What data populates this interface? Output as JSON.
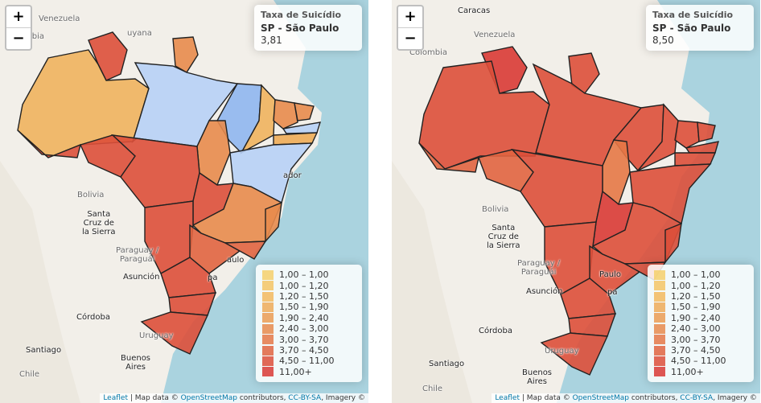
{
  "panels": [
    {
      "info": {
        "title": "Taxa de Suicídio",
        "state": "SP - São Paulo",
        "value": "3,81"
      }
    },
    {
      "info": {
        "title": "Taxa de Suicídio",
        "state": "SP - São Paulo",
        "value": "8,50"
      }
    }
  ],
  "zoom": {
    "in": "+",
    "out": "−"
  },
  "legend": [
    {
      "label": "1,00 – 1,00",
      "color": "#f6d06b"
    },
    {
      "label": "1,00 – 1,20",
      "color": "#f5c565"
    },
    {
      "label": "1,20 – 1,50",
      "color": "#f3ba5e"
    },
    {
      "label": "1,50 – 1,90",
      "color": "#eeac58"
    },
    {
      "label": "1,90 – 2,40",
      "color": "#eb9c52"
    },
    {
      "label": "2,40 – 3,00",
      "color": "#e88b4c"
    },
    {
      "label": "3,00 – 3,70",
      "color": "#e57846"
    },
    {
      "label": "3,70 – 4,50",
      "color": "#e16440"
    },
    {
      "label": "4,50 – 11,00",
      "color": "#dd4f3a"
    },
    {
      "label": "11,00+",
      "color": "#d93a35"
    }
  ],
  "attribution": {
    "leaflet": "Leaflet",
    "sep1": " | Map data © ",
    "osm": "OpenStreetMap",
    "sep2": " contributors, ",
    "license": "CC-BY-SA",
    "sep3": ", Imagery ©"
  },
  "labels_left": {
    "venezuela": "Venezuela",
    "guyana": "uyana",
    "colombia": "mbia",
    "bolivia": "Bolivia",
    "santa_cruz": "Santa\nCruz de\nla Sierra",
    "paraguay": "Paraguay /\nParaguái",
    "asuncion": "Asunción",
    "cordoba": "Córdoba",
    "uruguay": "Uruguay",
    "santiago": "Santiago",
    "buenos_aires": "Buenos\nAires",
    "chile": "Chile",
    "ador": "ador",
    "paulo": "aulo",
    "pa": "pa"
  },
  "labels_right": {
    "caracas": "Caracas",
    "venezuela": "Venezuela",
    "colombia": "Colombia",
    "bolivia": "Bolivia",
    "santa_cruz": "Santa\nCruz de\nla Sierra",
    "paraguay": "Paraguay /\nParaguái",
    "asuncion": "Asunción",
    "cordoba": "Córdoba",
    "uruguay": "Uruguay",
    "santiago": "Santiago",
    "buenos_aires": "Buenos\nAires",
    "chile": "Chile",
    "paulo": "Paulo",
    "pa": "pa"
  },
  "state_colors_left": {
    "roraima": "#dd4f3a",
    "amapa": "#e88b4c",
    "amazonas": "#f0b25e",
    "acre": "#dd4f3a",
    "para": "#b7d0f6",
    "maranhao": "#8fb6f0",
    "piaui": "#f0b25e",
    "ceara": "#e88b4c",
    "rn": "#e88b4c",
    "pb": "#b7d0f6",
    "pe": "#eeac58",
    "tocantins": "#e88b4c",
    "bahia": "#b7d0f6",
    "rondonia": "#dd4f3a",
    "mt": "#dd4f3a",
    "go": "#dd4f3a",
    "mg": "#e88b4c",
    "es": "#e88b4c",
    "ms": "#dd4f3a",
    "sp": "#e16440",
    "rj": "#e16440",
    "pr": "#dd4f3a",
    "sc": "#dd4f3a",
    "rs": "#dd4f3a"
  },
  "state_colors_right": {
    "roraima": "#d93a35",
    "amapa": "#dd4f3a",
    "amazonas": "#dd4f3a",
    "acre": "#e16440",
    "para": "#dd4f3a",
    "maranhao": "#dd4f3a",
    "piaui": "#dd4f3a",
    "ceara": "#dd4f3a",
    "rn": "#dd4f3a",
    "pb": "#dd4f3a",
    "pe": "#dd4f3a",
    "tocantins": "#e57846",
    "bahia": "#dd4f3a",
    "rondonia": "#e16440",
    "mt": "#dd4f3a",
    "go": "#d93a35",
    "mg": "#dd4f3a",
    "es": "#dd4f3a",
    "ms": "#dd4f3a",
    "sp": "#dd4f3a",
    "rj": "#dd4f3a",
    "pr": "#dd4f3a",
    "sc": "#dd4f3a",
    "rs": "#dd4f3a"
  }
}
